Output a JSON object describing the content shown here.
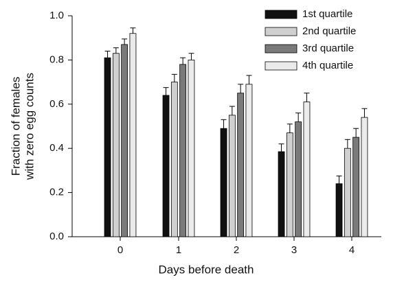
{
  "chart_data": {
    "type": "bar",
    "xlabel": "Days before death",
    "ylabel": [
      "Fraction of females",
      "with zero egg counts"
    ],
    "categories": [
      "0",
      "1",
      "2",
      "3",
      "4"
    ],
    "series": [
      {
        "name": "1st quartile",
        "color": "#111111",
        "values": [
          0.81,
          0.64,
          0.49,
          0.385,
          0.24
        ],
        "errors": [
          0.03,
          0.035,
          0.04,
          0.035,
          0.035
        ]
      },
      {
        "name": "2nd quartile",
        "color": "#d0d0d0",
        "values": [
          0.83,
          0.7,
          0.55,
          0.47,
          0.4
        ],
        "errors": [
          0.025,
          0.035,
          0.04,
          0.04,
          0.04
        ]
      },
      {
        "name": "3rd quartile",
        "color": "#7a7a7a",
        "values": [
          0.87,
          0.78,
          0.65,
          0.52,
          0.45
        ],
        "errors": [
          0.025,
          0.03,
          0.04,
          0.04,
          0.04
        ]
      },
      {
        "name": "4th quartile",
        "color": "#ebebeb",
        "values": [
          0.92,
          0.8,
          0.69,
          0.61,
          0.54
        ],
        "errors": [
          0.025,
          0.03,
          0.04,
          0.04,
          0.04
        ]
      }
    ],
    "ylim": [
      0,
      1
    ],
    "yticks": [
      {
        "value": 0,
        "label": "0.0"
      },
      0.2,
      0.4,
      0.6,
      0.8,
      {
        "value": 1,
        "label": "1.0"
      }
    ],
    "legend": "upper right"
  }
}
